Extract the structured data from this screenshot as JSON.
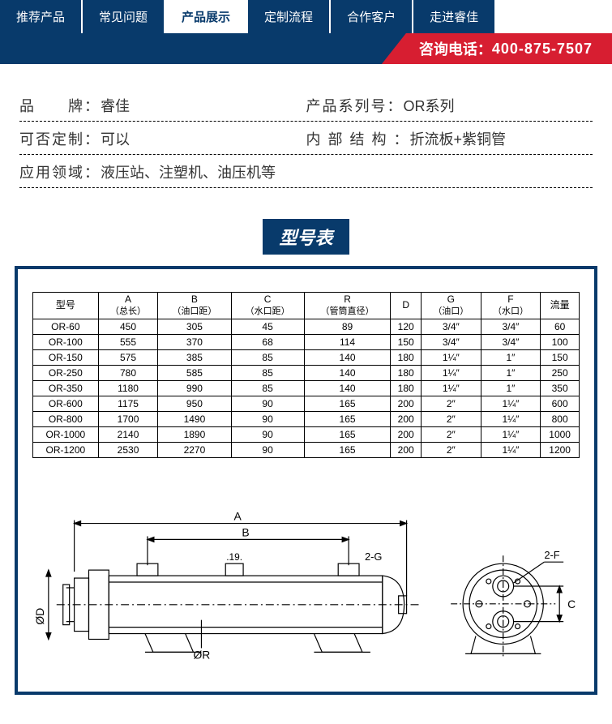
{
  "nav": {
    "items": [
      {
        "label": "推荐产品",
        "active": false
      },
      {
        "label": "常见问题",
        "active": false
      },
      {
        "label": "产品展示",
        "active": true
      },
      {
        "label": "定制流程",
        "active": false
      },
      {
        "label": "合作客户",
        "active": false
      },
      {
        "label": "走进睿佳",
        "active": false
      }
    ],
    "bg_color": "#083a6b",
    "active_bg": "#ffffff",
    "active_fg": "#083a6b"
  },
  "hotline": {
    "label": "咨询电话：",
    "number": "400-875-7507",
    "bg_color": "#d71e31"
  },
  "specs": {
    "rows": [
      {
        "left_label": "品　　牌：",
        "left_value": "睿佳",
        "right_label": "产品系列号：",
        "right_value": "OR系列"
      },
      {
        "left_label": "可否定制：",
        "left_value": "可以",
        "right_label": "内 部 结 构 ：",
        "right_value": "折流板+紫铜管"
      },
      {
        "full_label": "应用领域：",
        "full_value": "液压站、注塑机、油压机等"
      }
    ],
    "border_style": "dashed",
    "font_size": 18
  },
  "section_title": "型号表",
  "model_table": {
    "columns": [
      {
        "top": "型号",
        "sub": ""
      },
      {
        "top": "A",
        "sub": "（总长）"
      },
      {
        "top": "B",
        "sub": "（油口距）"
      },
      {
        "top": "C",
        "sub": "（水口距）"
      },
      {
        "top": "R",
        "sub": "（管筒直径）"
      },
      {
        "top": "D",
        "sub": ""
      },
      {
        "top": "G",
        "sub": "（油口）"
      },
      {
        "top": "F",
        "sub": "（水口）"
      },
      {
        "top": "流量",
        "sub": ""
      }
    ],
    "rows": [
      [
        "OR-60",
        "450",
        "305",
        "45",
        "89",
        "120",
        "3/4″",
        "3/4″",
        "60"
      ],
      [
        "OR-100",
        "555",
        "370",
        "68",
        "114",
        "150",
        "3/4″",
        "3/4″",
        "100"
      ],
      [
        "OR-150",
        "575",
        "385",
        "85",
        "140",
        "180",
        "1¼″",
        "1″",
        "150"
      ],
      [
        "OR-250",
        "780",
        "585",
        "85",
        "140",
        "180",
        "1¼″",
        "1″",
        "250"
      ],
      [
        "OR-350",
        "1180",
        "990",
        "85",
        "140",
        "180",
        "1¼″",
        "1″",
        "350"
      ],
      [
        "OR-600",
        "1175",
        "950",
        "90",
        "165",
        "200",
        "2″",
        "1¼″",
        "600"
      ],
      [
        "OR-800",
        "1700",
        "1490",
        "90",
        "165",
        "200",
        "2″",
        "1¼″",
        "800"
      ],
      [
        "OR-1000",
        "2140",
        "1890",
        "90",
        "165",
        "200",
        "2″",
        "1¼″",
        "1000"
      ],
      [
        "OR-1200",
        "2530",
        "2270",
        "90",
        "165",
        "200",
        "2″",
        "1¼″",
        "1200"
      ]
    ],
    "border_color": "#000000",
    "font_size": 12
  },
  "diagram": {
    "labels": {
      "A": "A",
      "B": "B",
      "nineteen": ".19.",
      "twoG": "2-G",
      "OD": "ØD",
      "OR": "ØR",
      "twoF": "2-F",
      "C": "C"
    },
    "stroke": "#000000",
    "stroke_width": 1.2
  },
  "colors": {
    "primary": "#083a6b",
    "accent": "#d71e31",
    "page_bg": "#ffffff",
    "text": "#333333"
  }
}
